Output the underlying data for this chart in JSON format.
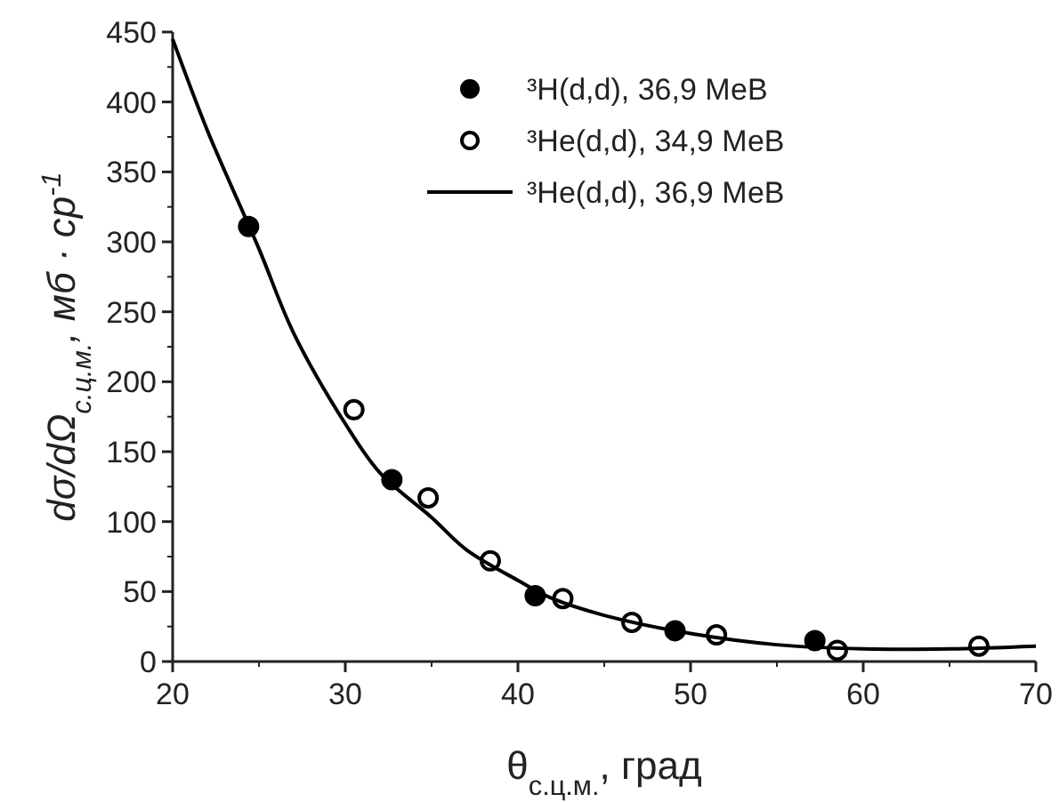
{
  "chart_data": {
    "type": "scatter",
    "xlabel": "θ$_{с.ц.м.}$, град",
    "ylabel": "dσ/dΩ$_{с.ц.м.}$, мб · ср$^{-1}$",
    "xlim": [
      20,
      70
    ],
    "xticks": [
      20,
      30,
      40,
      50,
      60,
      70
    ],
    "ylim": [
      0,
      450
    ],
    "yticks": [
      0,
      50,
      100,
      150,
      200,
      250,
      300,
      350,
      400,
      450
    ],
    "grid": false,
    "legend": "top right",
    "marker": "circle",
    "series": [
      {
        "name": "³H(d,d),  36,9 МеВ",
        "color": "#000000",
        "x": [
          24.4,
          32.7,
          41,
          49.1,
          57.2
        ],
        "values": [
          311,
          130,
          47,
          22,
          15
        ]
      },
      {
        "name": "³He(d,d), 34,9 МеВ",
        "color": "#000000",
        "marker": "open circle",
        "x": [
          30.5,
          34.8,
          38.4,
          42.6,
          46.6,
          51.5,
          58.5,
          66.7
        ],
        "values": [
          180,
          117,
          72,
          45,
          28,
          19,
          8,
          11
        ]
      },
      {
        "name": "³He(d,d), 36,9 МеВ",
        "type": "line",
        "color": "#000000",
        "marker": "none",
        "line_style": "solid",
        "x": [
          20,
          22,
          25,
          27,
          30,
          32,
          35,
          37,
          40,
          42,
          45,
          50,
          55,
          60,
          65,
          70
        ],
        "values": [
          445,
          380,
          295,
          235,
          170,
          135,
          103,
          80,
          58,
          45,
          33,
          20,
          12,
          9,
          9,
          11
        ]
      }
    ]
  }
}
